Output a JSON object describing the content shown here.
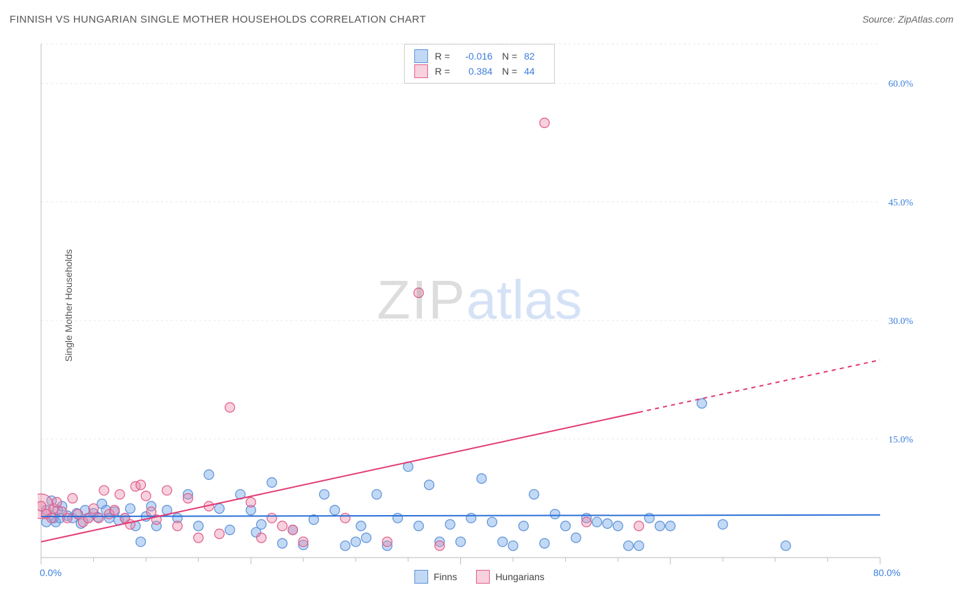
{
  "title": "FINNISH VS HUNGARIAN SINGLE MOTHER HOUSEHOLDS CORRELATION CHART",
  "source": "Source: ZipAtlas.com",
  "ylabel": "Single Mother Households",
  "watermark": {
    "a": "ZIP",
    "b": "atlas"
  },
  "chart": {
    "type": "scatter",
    "background_color": "#ffffff",
    "grid_color": "#e6e6e6",
    "axis_color": "#bbbbbb",
    "tick_color": "#bbbbbb",
    "text_color_axis": "#3a7edc",
    "xlim": [
      0,
      80
    ],
    "ylim": [
      0,
      65
    ],
    "x_axis_min_label": "0.0%",
    "x_axis_max_label": "80.0%",
    "yticks": [
      {
        "v": 15,
        "label": "15.0%"
      },
      {
        "v": 30,
        "label": "30.0%"
      },
      {
        "v": 45,
        "label": "45.0%"
      },
      {
        "v": 60,
        "label": "60.0%"
      }
    ],
    "xticks_major": [
      0,
      20,
      40,
      60,
      80
    ],
    "xticks_minor": [
      5,
      10,
      15,
      25,
      30,
      35,
      45,
      50,
      55,
      65,
      70,
      75
    ],
    "series": [
      {
        "name": "Finns",
        "marker_fill": "rgba(120,170,235,0.45)",
        "marker_stroke": "#5a8fd6",
        "marker_r": 7,
        "R": "-0.016",
        "N": "82",
        "trend": {
          "color": "#2a6fd6",
          "width": 2,
          "x1": 0,
          "y1": 5.2,
          "x2": 80,
          "y2": 5.4,
          "dashed_from_x": null
        },
        "data": [
          [
            0.5,
            6.0
          ],
          [
            0.5,
            4.5
          ],
          [
            1.0,
            7.2
          ],
          [
            1.2,
            5.0
          ],
          [
            1.4,
            4.5
          ],
          [
            1.6,
            6.0
          ],
          [
            1.8,
            5.0
          ],
          [
            2.0,
            6.5
          ],
          [
            2.5,
            5.3
          ],
          [
            3.0,
            5.0
          ],
          [
            3.4,
            5.6
          ],
          [
            3.8,
            4.3
          ],
          [
            4.2,
            6.0
          ],
          [
            4.5,
            5.0
          ],
          [
            5.0,
            5.6
          ],
          [
            5.4,
            5.1
          ],
          [
            5.8,
            6.8
          ],
          [
            6.2,
            6.0
          ],
          [
            6.5,
            5.0
          ],
          [
            7.0,
            5.8
          ],
          [
            7.4,
            4.7
          ],
          [
            8.0,
            5.0
          ],
          [
            8.5,
            6.2
          ],
          [
            9.0,
            4.0
          ],
          [
            9.5,
            2.0
          ],
          [
            10.0,
            5.2
          ],
          [
            10.5,
            6.5
          ],
          [
            11.0,
            4.0
          ],
          [
            12.0,
            6.0
          ],
          [
            13.0,
            5.0
          ],
          [
            14.0,
            8.0
          ],
          [
            15.0,
            4.0
          ],
          [
            16.0,
            10.5
          ],
          [
            17.0,
            6.2
          ],
          [
            18.0,
            3.5
          ],
          [
            19.0,
            8.0
          ],
          [
            20.0,
            6.0
          ],
          [
            20.5,
            3.2
          ],
          [
            21.0,
            4.2
          ],
          [
            22.0,
            9.5
          ],
          [
            23.0,
            1.8
          ],
          [
            24.0,
            3.5
          ],
          [
            25.0,
            1.6
          ],
          [
            26.0,
            4.8
          ],
          [
            27.0,
            8.0
          ],
          [
            28.0,
            6.0
          ],
          [
            29.0,
            1.5
          ],
          [
            30.0,
            2.0
          ],
          [
            30.5,
            4.0
          ],
          [
            31.0,
            2.5
          ],
          [
            32.0,
            8.0
          ],
          [
            33.0,
            1.5
          ],
          [
            34.0,
            5.0
          ],
          [
            35.0,
            11.5
          ],
          [
            36.0,
            4.0
          ],
          [
            37.0,
            9.2
          ],
          [
            38.0,
            2.0
          ],
          [
            39.0,
            4.2
          ],
          [
            40.0,
            2.0
          ],
          [
            41.0,
            5.0
          ],
          [
            42.0,
            10.0
          ],
          [
            43.0,
            4.5
          ],
          [
            44.0,
            2.0
          ],
          [
            45.0,
            1.5
          ],
          [
            46.0,
            4.0
          ],
          [
            47.0,
            8.0
          ],
          [
            48.0,
            1.8
          ],
          [
            49.0,
            5.5
          ],
          [
            50.0,
            4.0
          ],
          [
            51.0,
            2.5
          ],
          [
            52.0,
            5.0
          ],
          [
            53.0,
            4.5
          ],
          [
            54.0,
            4.3
          ],
          [
            55.0,
            4.0
          ],
          [
            56.0,
            1.5
          ],
          [
            57.0,
            1.5
          ],
          [
            58.0,
            5.0
          ],
          [
            59.0,
            4.0
          ],
          [
            60.0,
            4.0
          ],
          [
            63.0,
            19.5
          ],
          [
            65.0,
            4.2
          ],
          [
            71.0,
            1.5
          ]
        ]
      },
      {
        "name": "Hungarians",
        "marker_fill": "rgba(235,140,170,0.40)",
        "marker_stroke": "#e05a8a",
        "marker_r": 7,
        "R": "0.384",
        "N": "44",
        "trend": {
          "color": "#e23a72",
          "width": 2,
          "x1": 0,
          "y1": 2.0,
          "x2": 80,
          "y2": 25.0,
          "dashed_from_x": 57
        },
        "data": [
          [
            0.0,
            6.5
          ],
          [
            0.5,
            5.5
          ],
          [
            1.0,
            5.0
          ],
          [
            1.2,
            6.2
          ],
          [
            1.5,
            7.0
          ],
          [
            2.0,
            5.8
          ],
          [
            2.5,
            5.0
          ],
          [
            3.0,
            7.5
          ],
          [
            3.5,
            5.5
          ],
          [
            4.0,
            4.5
          ],
          [
            4.5,
            5.0
          ],
          [
            5.0,
            6.2
          ],
          [
            5.5,
            5.0
          ],
          [
            6.0,
            8.5
          ],
          [
            6.5,
            5.5
          ],
          [
            7.0,
            6.0
          ],
          [
            7.5,
            8.0
          ],
          [
            8.0,
            5.0
          ],
          [
            8.5,
            4.2
          ],
          [
            9.0,
            9.0
          ],
          [
            9.5,
            9.2
          ],
          [
            10.0,
            7.8
          ],
          [
            10.5,
            5.8
          ],
          [
            11.0,
            4.8
          ],
          [
            12.0,
            8.5
          ],
          [
            13.0,
            4.0
          ],
          [
            14.0,
            7.5
          ],
          [
            15.0,
            2.5
          ],
          [
            16.0,
            6.5
          ],
          [
            17.0,
            3.0
          ],
          [
            18.0,
            19.0
          ],
          [
            20.0,
            7.0
          ],
          [
            21.0,
            2.5
          ],
          [
            22.0,
            5.0
          ],
          [
            23.0,
            4.0
          ],
          [
            24.0,
            3.5
          ],
          [
            25.0,
            2.0
          ],
          [
            29.0,
            5.0
          ],
          [
            33.0,
            2.0
          ],
          [
            36.0,
            33.5
          ],
          [
            38.0,
            1.5
          ],
          [
            48.0,
            55.0
          ],
          [
            52.0,
            4.5
          ],
          [
            57.0,
            4.0
          ]
        ],
        "large_marker": {
          "x": 0.0,
          "y": 6.5,
          "r": 18
        }
      }
    ]
  },
  "legend_bottom": [
    {
      "label": "Finns",
      "fill": "rgba(120,170,235,0.45)",
      "stroke": "#5a8fd6"
    },
    {
      "label": "Hungarians",
      "fill": "rgba(235,140,170,0.40)",
      "stroke": "#e05a8a"
    }
  ]
}
